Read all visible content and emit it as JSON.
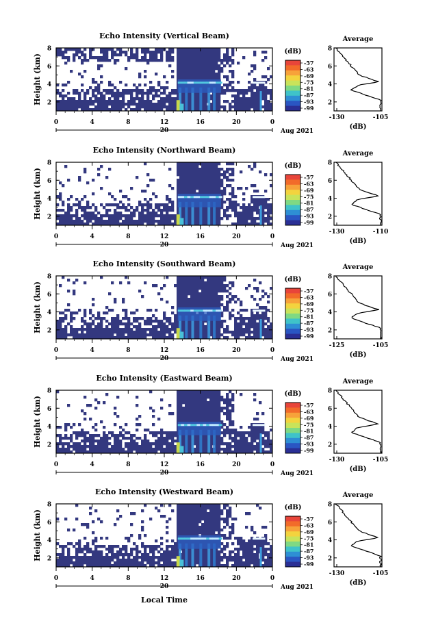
{
  "figure": {
    "xlabel_bottom": "Local Time",
    "date_label": "Aug 2021"
  },
  "chart_data": [
    {
      "type": "heatmap",
      "title": "Echo Intensity (Vertical Beam)",
      "xlabel": "",
      "ylabel": "Height (km)",
      "xlim": [
        0,
        24
      ],
      "ylim": [
        1,
        8
      ],
      "x_ticks": [
        "0",
        "4",
        "8",
        "12",
        "16",
        "20",
        "0"
      ],
      "y_ticks": [
        "2",
        "4",
        "6",
        "8"
      ],
      "secondary_x_label": "20",
      "colorbar": {
        "unit": "(dB)",
        "ticks": [
          "-57",
          "-63",
          "-69",
          "-75",
          "-81",
          "-87",
          "-93",
          "-99"
        ]
      },
      "profile": {
        "title": "Average",
        "xlabel": "(dB)",
        "x_ticks": [
          "-130",
          "-105"
        ],
        "y_ticks": [
          "2",
          "4",
          "6",
          "8"
        ]
      }
    },
    {
      "type": "heatmap",
      "title": "Echo Intensity (Northward Beam)",
      "xlabel": "",
      "ylabel": "Height (km)",
      "xlim": [
        0,
        24
      ],
      "ylim": [
        1,
        8
      ],
      "x_ticks": [
        "0",
        "4",
        "8",
        "12",
        "16",
        "20",
        "0"
      ],
      "y_ticks": [
        "2",
        "4",
        "6",
        "8"
      ],
      "secondary_x_label": "20",
      "colorbar": {
        "unit": "(dB)",
        "ticks": [
          "-57",
          "-63",
          "-69",
          "-75",
          "-81",
          "-87",
          "-93",
          "-99"
        ]
      },
      "profile": {
        "title": "Average",
        "xlabel": "(dB)",
        "x_ticks": [
          "-130",
          "-110"
        ],
        "y_ticks": [
          "2",
          "4",
          "6",
          "8"
        ]
      }
    },
    {
      "type": "heatmap",
      "title": "Echo Intensity (Southward Beam)",
      "xlabel": "",
      "ylabel": "Height (km)",
      "xlim": [
        0,
        24
      ],
      "ylim": [
        1,
        8
      ],
      "x_ticks": [
        "0",
        "4",
        "8",
        "12",
        "16",
        "20",
        "0"
      ],
      "y_ticks": [
        "2",
        "4",
        "6",
        "8"
      ],
      "secondary_x_label": "20",
      "colorbar": {
        "unit": "(dB)",
        "ticks": [
          "-57",
          "-63",
          "-69",
          "-75",
          "-81",
          "-87",
          "-93",
          "-99"
        ]
      },
      "profile": {
        "title": "Average",
        "xlabel": "(dB)",
        "x_ticks": [
          "-125",
          "-105"
        ],
        "y_ticks": [
          "2",
          "4",
          "6",
          "8"
        ]
      }
    },
    {
      "type": "heatmap",
      "title": "Echo Intensity (Eastward Beam)",
      "xlabel": "",
      "ylabel": "Height (km)",
      "xlim": [
        0,
        24
      ],
      "ylim": [
        1,
        8
      ],
      "x_ticks": [
        "0",
        "4",
        "8",
        "12",
        "16",
        "20",
        "0"
      ],
      "y_ticks": [
        "2",
        "4",
        "6",
        "8"
      ],
      "secondary_x_label": "20",
      "colorbar": {
        "unit": "(dB)",
        "ticks": [
          "-57",
          "-63",
          "-69",
          "-75",
          "-81",
          "-87",
          "-93",
          "-99"
        ]
      },
      "profile": {
        "title": "Average",
        "xlabel": "(dB)",
        "x_ticks": [
          "-130",
          "-105"
        ],
        "y_ticks": [
          "2",
          "4",
          "6",
          "8"
        ]
      }
    },
    {
      "type": "heatmap",
      "title": "Echo Intensity (Westward Beam)",
      "xlabel": "",
      "ylabel": "Height (km)",
      "xlim": [
        0,
        24
      ],
      "ylim": [
        1,
        8
      ],
      "x_ticks": [
        "0",
        "4",
        "8",
        "12",
        "16",
        "20",
        "0"
      ],
      "y_ticks": [
        "2",
        "4",
        "6",
        "8"
      ],
      "secondary_x_label": "20",
      "colorbar": {
        "unit": "(dB)",
        "ticks": [
          "-57",
          "-63",
          "-69",
          "-75",
          "-81",
          "-87",
          "-93",
          "-99"
        ]
      },
      "profile": {
        "title": "Average",
        "xlabel": "(dB)",
        "x_ticks": [
          "-130",
          "-105"
        ],
        "y_ticks": [
          "2",
          "4",
          "6",
          "8"
        ]
      }
    }
  ]
}
